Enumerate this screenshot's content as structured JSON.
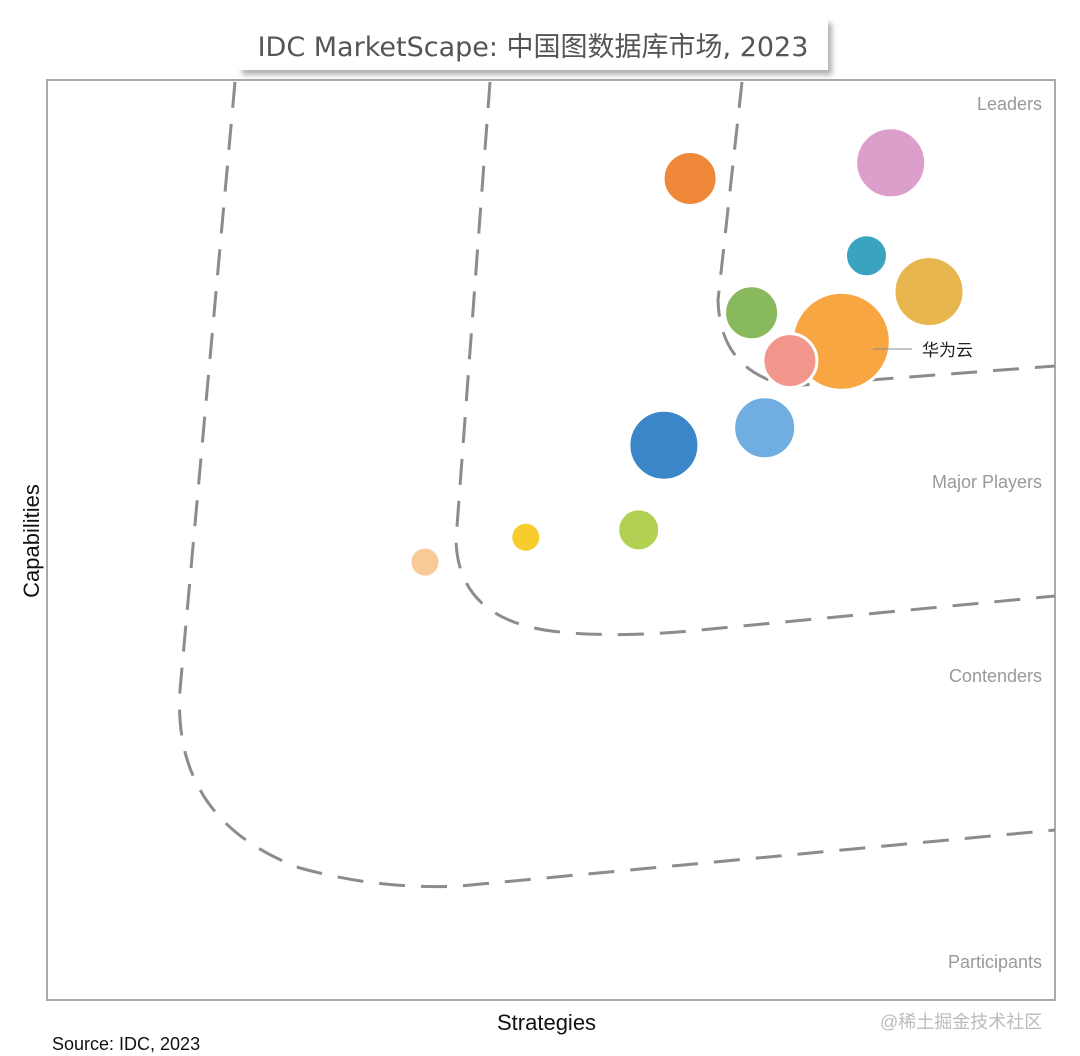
{
  "chart_data": {
    "type": "scatter",
    "title": "IDC MarketScape: 中国图数据库市场, 2023",
    "xlabel": "Strategies",
    "ylabel": "Capabilities",
    "xlim": [
      0,
      100
    ],
    "ylim": [
      0,
      100
    ],
    "grid": false,
    "segments": [
      "Leaders",
      "Major Players",
      "Contenders",
      "Participants"
    ],
    "points": [
      {
        "x": 63.8,
        "y": 89.3,
        "size": 27,
        "color": "#f0883a",
        "label": ""
      },
      {
        "x": 83.7,
        "y": 91.0,
        "size": 35,
        "color": "#dc9fcb",
        "label": ""
      },
      {
        "x": 81.3,
        "y": 80.9,
        "size": 21,
        "color": "#3aa3bd",
        "label": ""
      },
      {
        "x": 87.5,
        "y": 77.0,
        "size": 35,
        "color": "#e8b64f",
        "label": ""
      },
      {
        "x": 69.9,
        "y": 74.7,
        "size": 27,
        "color": "#88b95c",
        "label": ""
      },
      {
        "x": 78.8,
        "y": 71.6,
        "size": 49,
        "color": "#f8a641",
        "label": "华为云"
      },
      {
        "x": 73.7,
        "y": 69.5,
        "size": 27,
        "color": "#f2958a",
        "label": ""
      },
      {
        "x": 71.2,
        "y": 62.2,
        "size": 31,
        "color": "#70ade0",
        "label": ""
      },
      {
        "x": 61.2,
        "y": 60.3,
        "size": 35,
        "color": "#3b86c8",
        "label": ""
      },
      {
        "x": 58.7,
        "y": 51.1,
        "size": 21,
        "color": "#b2d153",
        "label": ""
      },
      {
        "x": 47.5,
        "y": 50.3,
        "size": 15,
        "color": "#f6cd2c",
        "label": ""
      },
      {
        "x": 37.5,
        "y": 47.6,
        "size": 15,
        "color": "#f9c998",
        "label": ""
      }
    ]
  },
  "source": "Source: IDC, 2023",
  "watermark": "@稀土掘金技术社区"
}
